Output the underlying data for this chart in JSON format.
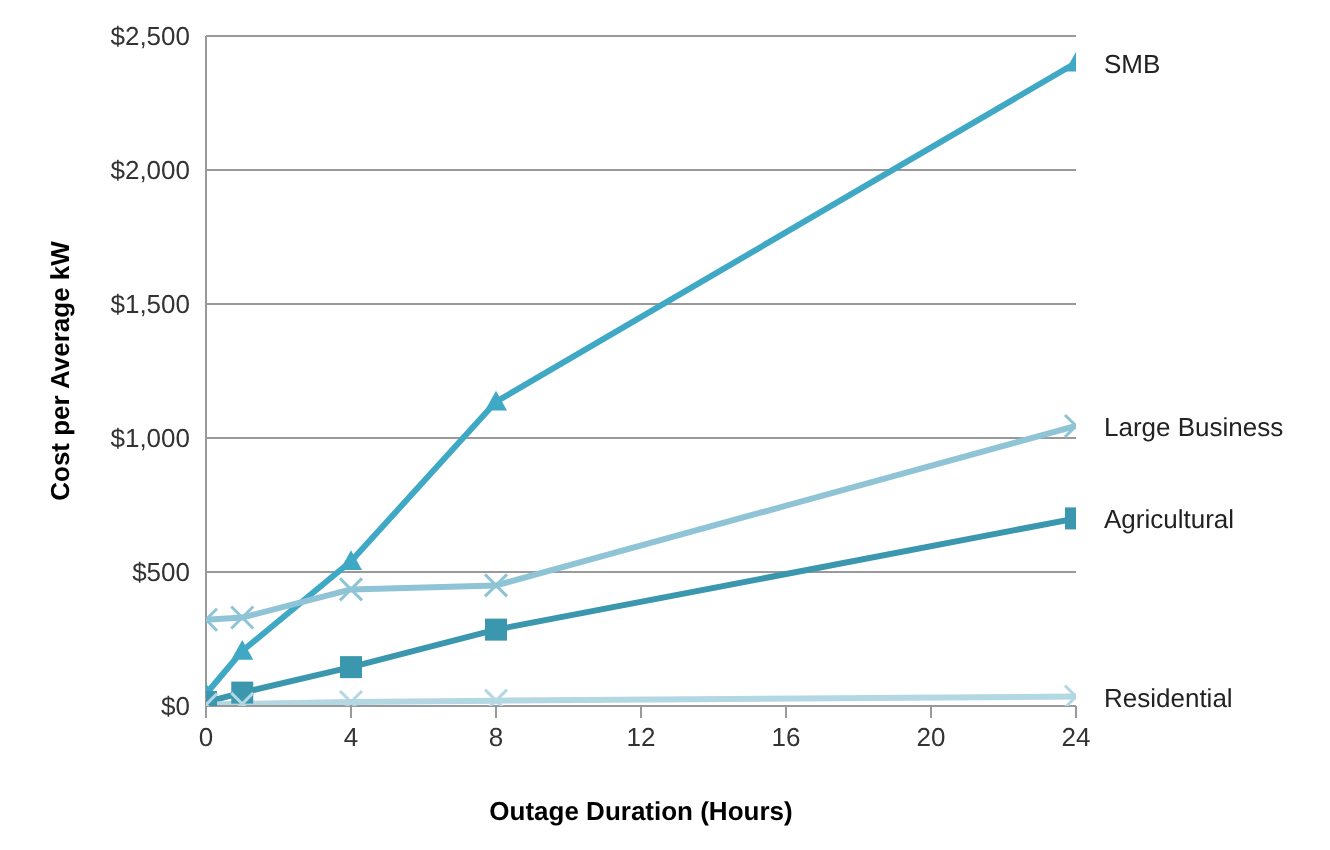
{
  "chart_data": {
    "type": "line",
    "xlabel": "Outage Duration (Hours)",
    "ylabel": "Cost per Average kW",
    "x": [
      0,
      1,
      4,
      8,
      24
    ],
    "series": [
      {
        "name": "SMB",
        "color": "#3fa9c5",
        "marker": "triangle",
        "values": [
          45,
          205,
          540,
          1135,
          2400
        ]
      },
      {
        "name": "Large Business",
        "color": "#8ec4d5",
        "marker": "cross",
        "values": [
          322,
          330,
          435,
          450,
          1045
        ]
      },
      {
        "name": "Agricultural",
        "color": "#3a97ae",
        "marker": "square",
        "values": [
          15,
          50,
          145,
          285,
          700
        ]
      },
      {
        "name": "Residential",
        "color": "#b3d7e3",
        "marker": "cross",
        "values": [
          5,
          8,
          15,
          20,
          35
        ]
      }
    ],
    "xlim": [
      0,
      24
    ],
    "xticks": [
      0,
      4,
      8,
      12,
      16,
      20,
      24
    ],
    "ylim": [
      0,
      2500
    ],
    "yticks": [
      {
        "value": 0,
        "label": "$0"
      },
      {
        "value": 500,
        "label": "$500"
      },
      {
        "value": 1000,
        "label": "$1,000"
      },
      {
        "value": 1500,
        "label": "$1,500"
      },
      {
        "value": 2000,
        "label": "$2,000"
      },
      {
        "value": 2500,
        "label": "$2,500"
      }
    ],
    "grid": "y",
    "legend": false,
    "line_style": "solid"
  }
}
